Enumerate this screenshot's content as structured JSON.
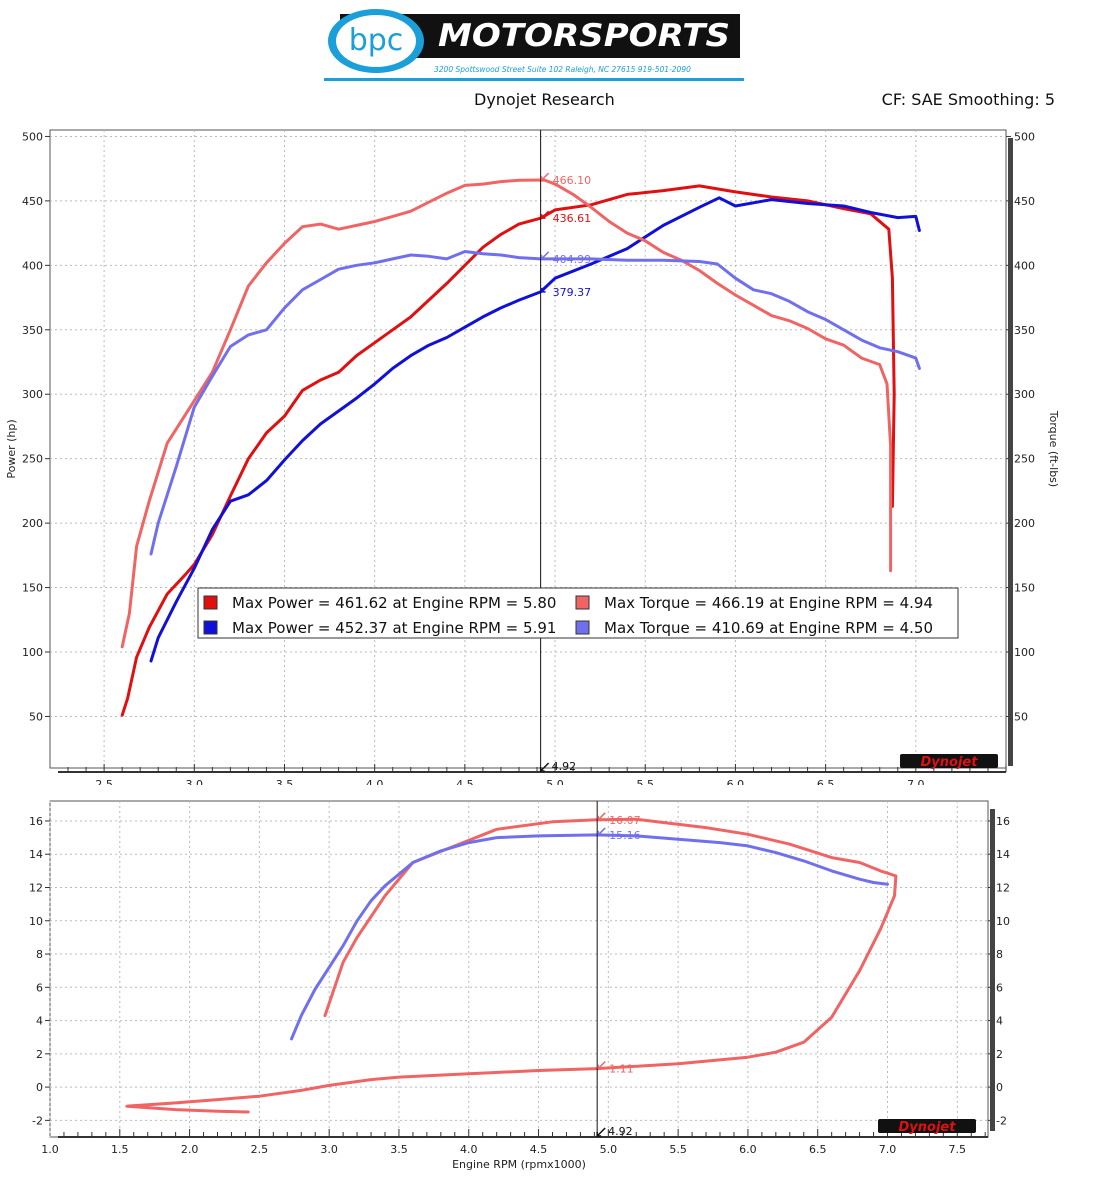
{
  "header": {
    "logo_left": "bpc",
    "logo_right": "MOTORSPORTS",
    "address": "3200 Spottswood Street Suite 102 Raleigh, NC 27615  919-501-2090",
    "title": "Dynojet Research",
    "cf": "CF: SAE Smoothing: 5",
    "brand": "Dynojet"
  },
  "colors": {
    "red": "#e01010",
    "blue": "#1010d8",
    "lightred": "#f06464",
    "lightblue": "#7070ee"
  },
  "chart_data": [
    {
      "type": "line",
      "xlabel": "",
      "ylabel": "Power (hp)",
      "y2label": "Torque (ft-lbs)",
      "xlim": [
        2.2,
        7.5
      ],
      "ylim": [
        10,
        505
      ],
      "xticks": [
        "2.5",
        "3.0",
        "3.5",
        "4.0",
        "4.5",
        "5.0",
        "5.5",
        "6.0",
        "6.5",
        "7.0"
      ],
      "yticks": [
        "50",
        "100",
        "150",
        "200",
        "250",
        "300",
        "350",
        "400",
        "450",
        "500"
      ],
      "grid": true,
      "legend_position": "center-bottom",
      "legend": [
        {
          "text": "Max Power = 461.62 at Engine RPM = 5.80",
          "color": "#e01010"
        },
        {
          "text": "Max Torque = 466.19 at Engine RPM = 4.94",
          "color": "#f06464"
        },
        {
          "text": "Max Power = 452.37 at Engine RPM = 5.91",
          "color": "#1010d8"
        },
        {
          "text": "Max Torque = 410.69 at Engine RPM = 4.50",
          "color": "#7070ee"
        }
      ],
      "cursor": {
        "x": 4.92,
        "label": "4.92"
      },
      "cursor_values": [
        {
          "label": "466.10",
          "y": 466.1,
          "color": "#f06464"
        },
        {
          "label": "436.61",
          "y": 436.61,
          "color": "#e01010"
        },
        {
          "label": "404.99",
          "y": 404.99,
          "color": "#7070ee"
        },
        {
          "label": "379.37",
          "y": 379.37,
          "color": "#1010d8"
        }
      ],
      "series": [
        {
          "color": "#e01010",
          "points": [
            [
              2.6,
              51
            ],
            [
              2.63,
              64
            ],
            [
              2.68,
              96
            ],
            [
              2.75,
              119
            ],
            [
              2.85,
              145
            ],
            [
              2.95,
              160
            ],
            [
              3.0,
              168
            ],
            [
              3.1,
              191
            ],
            [
              3.2,
              221
            ],
            [
              3.3,
              250
            ],
            [
              3.4,
              270
            ],
            [
              3.5,
              283
            ],
            [
              3.6,
              303
            ],
            [
              3.7,
              311
            ],
            [
              3.8,
              317
            ],
            [
              3.9,
              330
            ],
            [
              4.0,
              340
            ],
            [
              4.1,
              350
            ],
            [
              4.2,
              360
            ],
            [
              4.3,
              373
            ],
            [
              4.4,
              386
            ],
            [
              4.5,
              400
            ],
            [
              4.6,
              414
            ],
            [
              4.7,
              424
            ],
            [
              4.8,
              432
            ],
            [
              4.92,
              436.6
            ],
            [
              5.0,
              443
            ],
            [
              5.2,
              447
            ],
            [
              5.4,
              455
            ],
            [
              5.6,
              458
            ],
            [
              5.8,
              461.6
            ],
            [
              6.0,
              457
            ],
            [
              6.2,
              453
            ],
            [
              6.4,
              450
            ],
            [
              6.6,
              444
            ],
            [
              6.75,
              440
            ],
            [
              6.85,
              428
            ],
            [
              6.87,
              390
            ],
            [
              6.88,
              300
            ],
            [
              6.87,
              213
            ]
          ]
        },
        {
          "color": "#1010d8",
          "points": [
            [
              2.76,
              93
            ],
            [
              2.8,
              111
            ],
            [
              2.9,
              139
            ],
            [
              3.0,
              165
            ],
            [
              3.1,
              195
            ],
            [
              3.2,
              217
            ],
            [
              3.3,
              222
            ],
            [
              3.4,
              233
            ],
            [
              3.5,
              249
            ],
            [
              3.6,
              264
            ],
            [
              3.7,
              277
            ],
            [
              3.8,
              287
            ],
            [
              3.9,
              297
            ],
            [
              4.0,
              308
            ],
            [
              4.1,
              320
            ],
            [
              4.2,
              330
            ],
            [
              4.3,
              338
            ],
            [
              4.4,
              344
            ],
            [
              4.5,
              352
            ],
            [
              4.6,
              360
            ],
            [
              4.7,
              367
            ],
            [
              4.8,
              373
            ],
            [
              4.92,
              379.4
            ],
            [
              5.0,
              390
            ],
            [
              5.2,
              401
            ],
            [
              5.4,
              413
            ],
            [
              5.6,
              431
            ],
            [
              5.8,
              445
            ],
            [
              5.91,
              452.4
            ],
            [
              6.0,
              446
            ],
            [
              6.2,
              451
            ],
            [
              6.4,
              448
            ],
            [
              6.6,
              446
            ],
            [
              6.75,
              441
            ],
            [
              6.9,
              437
            ],
            [
              7.0,
              438
            ],
            [
              7.02,
              427
            ]
          ]
        },
        {
          "color": "#f06464",
          "points": [
            [
              2.6,
              104
            ],
            [
              2.64,
              130
            ],
            [
              2.68,
              182
            ],
            [
              2.75,
              217
            ],
            [
              2.85,
              262
            ],
            [
              3.0,
              295
            ],
            [
              3.1,
              317
            ],
            [
              3.2,
              350
            ],
            [
              3.3,
              384
            ],
            [
              3.4,
              402
            ],
            [
              3.5,
              417
            ],
            [
              3.6,
              430
            ],
            [
              3.7,
              432
            ],
            [
              3.8,
              428
            ],
            [
              3.9,
              431
            ],
            [
              4.0,
              434
            ],
            [
              4.1,
              438
            ],
            [
              4.2,
              442
            ],
            [
              4.3,
              449
            ],
            [
              4.4,
              456
            ],
            [
              4.5,
              462
            ],
            [
              4.6,
              463
            ],
            [
              4.7,
              465
            ],
            [
              4.8,
              466
            ],
            [
              4.94,
              466.2
            ],
            [
              5.0,
              463
            ],
            [
              5.1,
              455
            ],
            [
              5.2,
              445
            ],
            [
              5.3,
              434
            ],
            [
              5.4,
              425
            ],
            [
              5.5,
              419
            ],
            [
              5.6,
              410
            ],
            [
              5.7,
              404
            ],
            [
              5.8,
              396
            ],
            [
              5.9,
              386
            ],
            [
              6.0,
              377
            ],
            [
              6.1,
              369
            ],
            [
              6.2,
              361
            ],
            [
              6.3,
              357
            ],
            [
              6.4,
              351
            ],
            [
              6.5,
              343
            ],
            [
              6.6,
              338
            ],
            [
              6.7,
              328
            ],
            [
              6.8,
              323
            ],
            [
              6.84,
              308
            ],
            [
              6.86,
              260
            ],
            [
              6.86,
              163
            ]
          ]
        },
        {
          "color": "#7070ee",
          "points": [
            [
              2.76,
              176
            ],
            [
              2.8,
              200
            ],
            [
              2.9,
              244
            ],
            [
              3.0,
              290
            ],
            [
              3.1,
              314
            ],
            [
              3.2,
              337
            ],
            [
              3.3,
              346
            ],
            [
              3.4,
              350
            ],
            [
              3.5,
              367
            ],
            [
              3.6,
              381
            ],
            [
              3.7,
              389
            ],
            [
              3.8,
              397
            ],
            [
              3.9,
              400
            ],
            [
              4.0,
              402
            ],
            [
              4.1,
              405
            ],
            [
              4.2,
              408
            ],
            [
              4.3,
              407
            ],
            [
              4.4,
              405
            ],
            [
              4.5,
              410.7
            ],
            [
              4.6,
              409
            ],
            [
              4.7,
              408
            ],
            [
              4.8,
              406
            ],
            [
              4.92,
              405
            ],
            [
              5.0,
              405
            ],
            [
              5.2,
              405
            ],
            [
              5.4,
              404
            ],
            [
              5.6,
              404
            ],
            [
              5.8,
              403
            ],
            [
              5.9,
              401
            ],
            [
              6.0,
              390
            ],
            [
              6.1,
              381
            ],
            [
              6.2,
              378
            ],
            [
              6.3,
              372
            ],
            [
              6.4,
              364
            ],
            [
              6.5,
              358
            ],
            [
              6.6,
              350
            ],
            [
              6.7,
              342
            ],
            [
              6.8,
              336
            ],
            [
              6.9,
              333
            ],
            [
              7.0,
              328
            ],
            [
              7.02,
              320
            ]
          ]
        }
      ]
    },
    {
      "type": "line",
      "xlabel": "Engine RPM (rpmx1000)",
      "ylabel": "",
      "xlim": [
        1.0,
        7.72
      ],
      "ylim": [
        -3.0,
        17.2
      ],
      "xticks": [
        "1.0",
        "1.5",
        "2.0",
        "2.5",
        "3.0",
        "3.5",
        "4.0",
        "4.5",
        "5.0",
        "5.5",
        "6.0",
        "6.5",
        "7.0",
        "7.5"
      ],
      "yticks": [
        "-2",
        "0",
        "2",
        "4",
        "6",
        "8",
        "10",
        "12",
        "14",
        "16"
      ],
      "grid": true,
      "cursor": {
        "x": 4.92,
        "label": "4.92"
      },
      "cursor_values": [
        {
          "label": "16.07",
          "y": 16.07,
          "color": "#f06464"
        },
        {
          "label": "15.16",
          "y": 15.16,
          "color": "#7070ee"
        },
        {
          "label": "1.11",
          "y": 1.11,
          "color": "#f06464"
        }
      ],
      "series": [
        {
          "color": "#f06464",
          "points": [
            [
              2.42,
              -1.5
            ],
            [
              2.2,
              -1.45
            ],
            [
              1.9,
              -1.35
            ],
            [
              1.55,
              -1.15
            ],
            [
              1.9,
              -0.95
            ],
            [
              2.2,
              -0.75
            ],
            [
              2.5,
              -0.55
            ],
            [
              2.8,
              -0.2
            ],
            [
              3.0,
              0.1
            ],
            [
              3.3,
              0.45
            ],
            [
              3.5,
              0.6
            ],
            [
              4.0,
              0.8
            ],
            [
              4.5,
              1.0
            ],
            [
              4.92,
              1.11
            ],
            [
              5.5,
              1.4
            ],
            [
              6.0,
              1.8
            ],
            [
              6.2,
              2.1
            ],
            [
              6.4,
              2.7
            ],
            [
              6.6,
              4.2
            ],
            [
              6.8,
              7.0
            ],
            [
              6.95,
              9.5
            ],
            [
              7.05,
              11.5
            ],
            [
              7.06,
              12.7
            ],
            [
              6.95,
              13.0
            ],
            [
              6.8,
              13.5
            ],
            [
              6.6,
              13.8
            ],
            [
              6.3,
              14.6
            ],
            [
              6.0,
              15.2
            ],
            [
              5.7,
              15.6
            ],
            [
              5.4,
              15.9
            ],
            [
              5.2,
              16.1
            ],
            [
              4.92,
              16.07
            ],
            [
              4.6,
              15.95
            ],
            [
              4.2,
              15.5
            ],
            [
              3.9,
              14.5
            ],
            [
              3.6,
              13.5
            ],
            [
              3.4,
              11.5
            ],
            [
              3.2,
              9.0
            ],
            [
              3.1,
              7.5
            ],
            [
              2.97,
              4.3
            ]
          ]
        },
        {
          "color": "#7070ee",
          "points": [
            [
              2.73,
              2.9
            ],
            [
              2.8,
              4.3
            ],
            [
              2.9,
              5.9
            ],
            [
              3.0,
              7.2
            ],
            [
              3.1,
              8.5
            ],
            [
              3.2,
              10.0
            ],
            [
              3.3,
              11.2
            ],
            [
              3.4,
              12.1
            ],
            [
              3.5,
              12.8
            ],
            [
              3.6,
              13.5
            ],
            [
              3.8,
              14.2
            ],
            [
              4.0,
              14.7
            ],
            [
              4.2,
              15.0
            ],
            [
              4.5,
              15.1
            ],
            [
              4.92,
              15.16
            ],
            [
              5.2,
              15.1
            ],
            [
              5.5,
              14.9
            ],
            [
              5.8,
              14.7
            ],
            [
              6.0,
              14.5
            ],
            [
              6.2,
              14.1
            ],
            [
              6.4,
              13.6
            ],
            [
              6.6,
              13.0
            ],
            [
              6.8,
              12.5
            ],
            [
              6.9,
              12.3
            ],
            [
              7.0,
              12.2
            ]
          ]
        }
      ]
    }
  ]
}
